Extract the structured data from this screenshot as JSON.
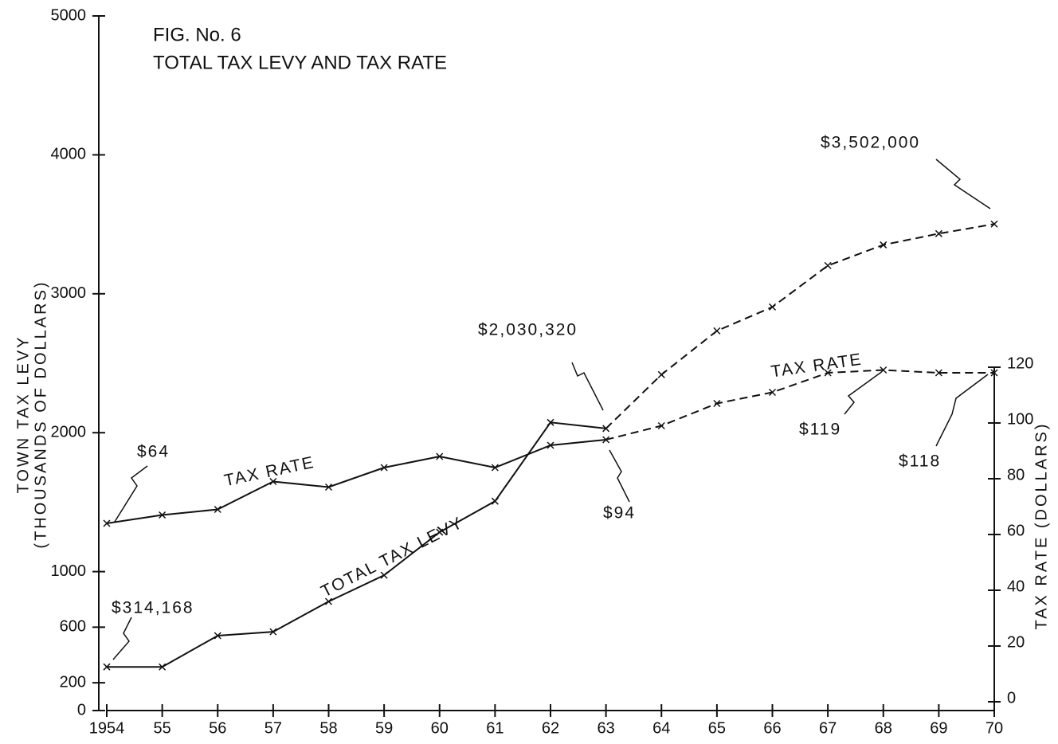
{
  "chart_data": {
    "type": "line",
    "title": "FIG. No. 6",
    "subtitle": "TOTAL TAX LEVY AND TAX RATE",
    "y_label": [
      "TOWN TAX LEVY",
      "(THOUSANDS OF DOLLARS)"
    ],
    "y2_label": "TAX RATE (DOLLARS)",
    "categories": [
      "1954",
      "55",
      "56",
      "57",
      "58",
      "59",
      "60",
      "61",
      "62",
      "63",
      "64",
      "65",
      "66",
      "67",
      "68",
      "69",
      "70"
    ],
    "series": [
      {
        "name": "TOTAL TAX LEVY",
        "color": "#111",
        "dashed_from": 9,
        "values": [
          314.168,
          314,
          539,
          567,
          785,
          974,
          1284,
          1507,
          2074,
          2030.32,
          2418,
          2733,
          2905,
          3203,
          3352,
          3433,
          3502
        ]
      },
      {
        "name": "TAX RATE",
        "color": "#111",
        "axis": "y2",
        "dashed_from": 9,
        "values": [
          64,
          67,
          69,
          79,
          77,
          84,
          88,
          84,
          92,
          94,
          99,
          107,
          111,
          118,
          119,
          118,
          118
        ]
      }
    ],
    "ylim": [
      0,
      5000
    ],
    "yticks": [
      0,
      200,
      600,
      1000,
      2000,
      3000,
      4000,
      5000
    ],
    "y2lim": [
      0,
      120
    ],
    "y2ticks": [
      0,
      20,
      40,
      60,
      80,
      100,
      120
    ],
    "annotations": [
      "$64",
      "$314,168",
      "$2,030,320",
      "$94",
      "$3,502,000",
      "$119",
      "$118",
      "TAX RATE",
      "TAX RATE",
      "TOTAL TAX LEVY"
    ]
  }
}
